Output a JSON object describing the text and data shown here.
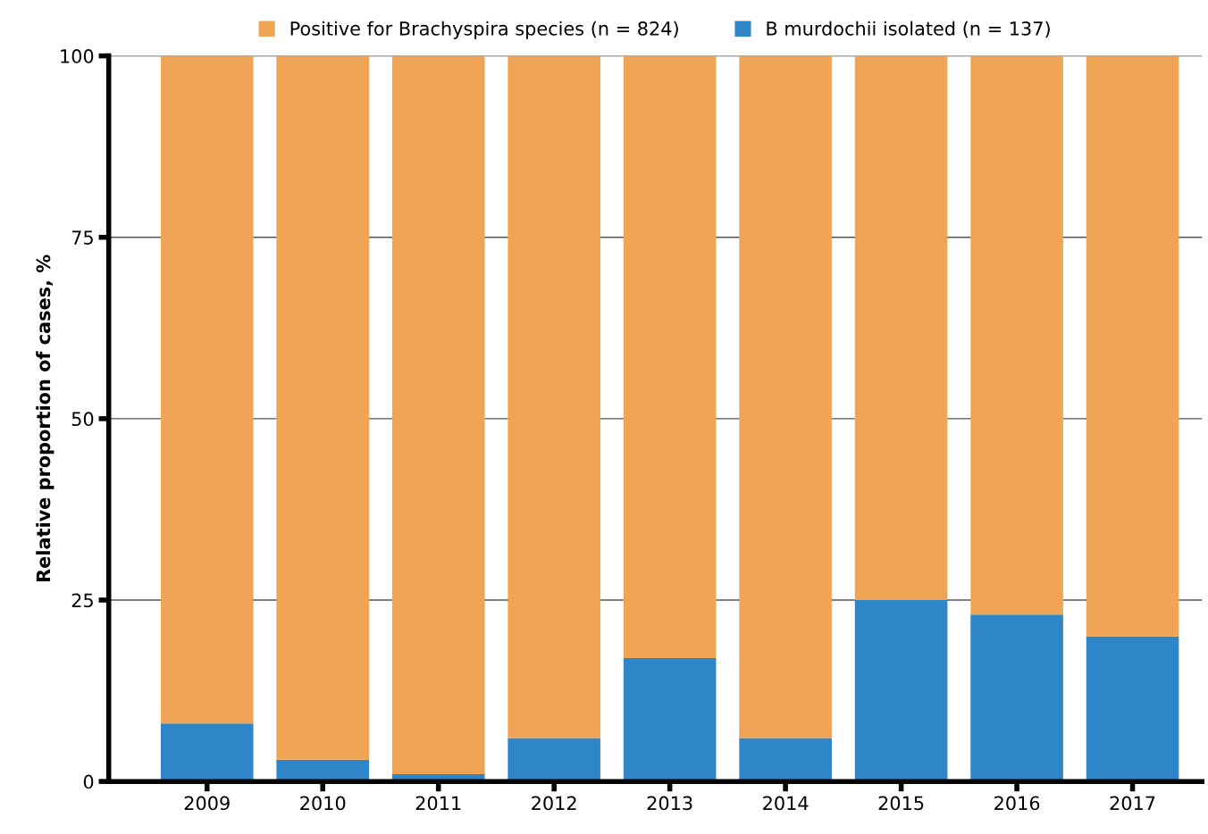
{
  "chart_data": {
    "type": "bar",
    "stacked": true,
    "ylabel": "Relative proportion of cases, %",
    "categories": [
      "2009",
      "2010",
      "2011",
      "2012",
      "2013",
      "2014",
      "2015",
      "2016",
      "2017"
    ],
    "series": [
      {
        "name": "B murdochii isolated (n = 137)",
        "color": "#2e86c9",
        "values": [
          8,
          3,
          1,
          6,
          17,
          6,
          25,
          23,
          20
        ]
      },
      {
        "name": "Positive for Brachyspira species (n = 824)",
        "color": "#f0a455",
        "values": [
          92,
          97,
          99,
          94,
          83,
          94,
          75,
          77,
          80
        ]
      }
    ],
    "ylim": [
      0,
      100
    ],
    "yticks": [
      0,
      25,
      50,
      75,
      100
    ],
    "grid": "y",
    "legend": "top"
  }
}
